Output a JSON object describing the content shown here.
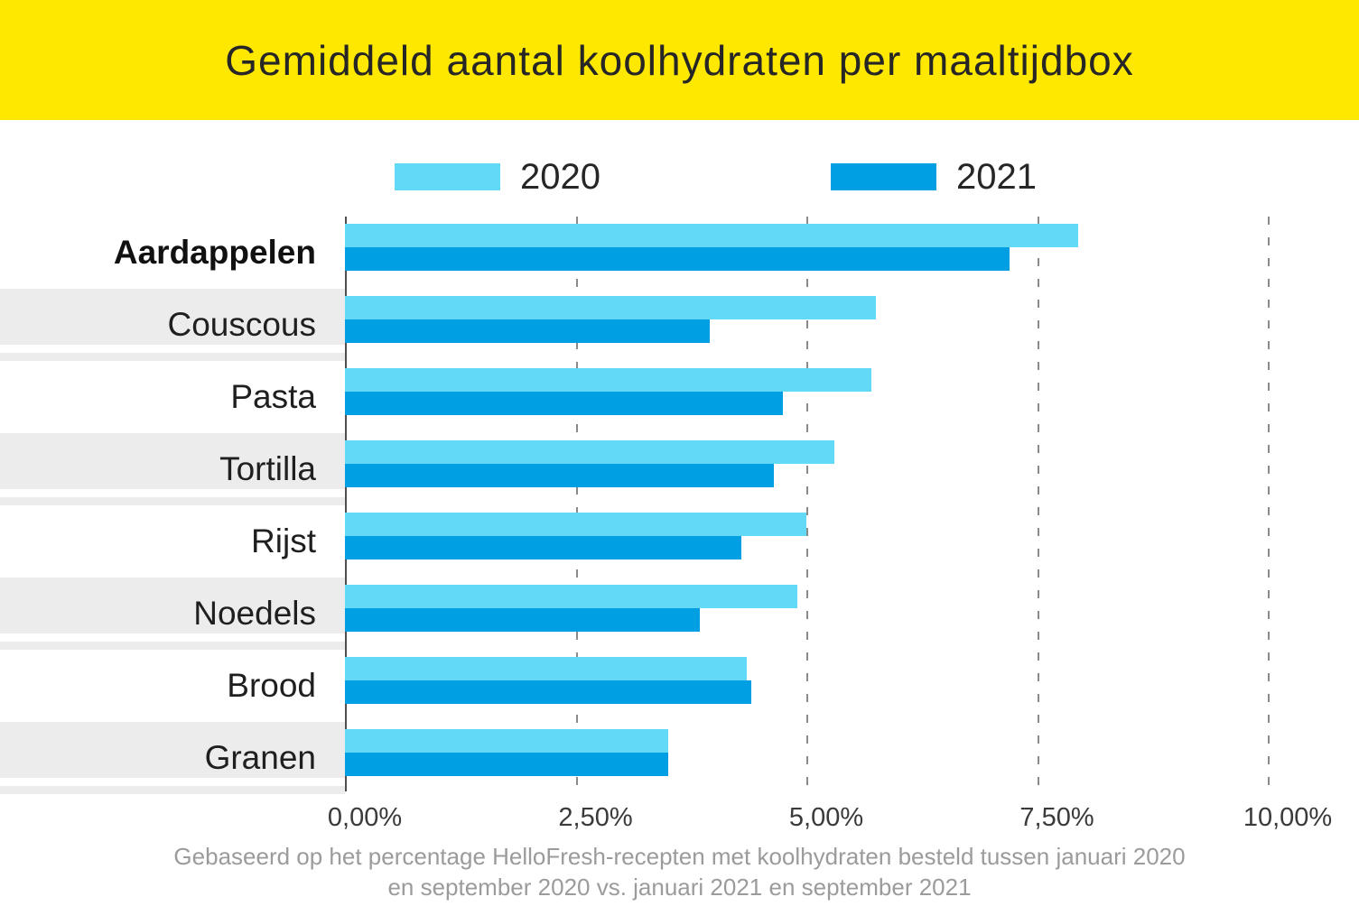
{
  "header": {
    "title": "Gemiddeld aantal koolhydraten per maaltijdbox",
    "background_color": "#FFE800"
  },
  "legend": {
    "items": [
      {
        "label": "2020",
        "color": "#62D9F7"
      },
      {
        "label": "2021",
        "color": "#009EE3"
      }
    ]
  },
  "chart_data": {
    "type": "bar",
    "orientation": "horizontal",
    "title": "Gemiddeld aantal koolhydraten per maaltijdbox",
    "categories": [
      "Aardappelen",
      "Couscous",
      "Pasta",
      "Tortilla",
      "Rijst",
      "Noedels",
      "Brood",
      "Granen"
    ],
    "series": [
      {
        "name": "2020",
        "color": "#62D9F7",
        "values": [
          7.95,
          5.75,
          5.7,
          5.3,
          5.0,
          4.9,
          4.35,
          3.5
        ]
      },
      {
        "name": "2021",
        "color": "#009EE3",
        "values": [
          7.2,
          3.95,
          4.75,
          4.65,
          4.3,
          3.85,
          4.4,
          3.5
        ]
      }
    ],
    "xlim": [
      0,
      10
    ],
    "x_ticks": [
      {
        "label": "0,00%",
        "value": 0
      },
      {
        "label": "2,50%",
        "value": 2.5
      },
      {
        "label": "5,00%",
        "value": 5
      },
      {
        "label": "7,50%",
        "value": 7.5
      },
      {
        "label": "10,00%",
        "value": 10
      }
    ],
    "unit": "%",
    "grid": "dashed-vertical",
    "legend_position": "top",
    "highlighted_category": "Aardappelen",
    "striped_categories": [
      "Couscous",
      "Tortilla",
      "Noedels",
      "Granen"
    ]
  },
  "footer": {
    "line1": "Gebaseerd op het percentage HelloFresh-recepten met koolhydraten besteld tussen januari 2020",
    "line2": "en september 2020 vs. januari 2021 en september 2021"
  }
}
